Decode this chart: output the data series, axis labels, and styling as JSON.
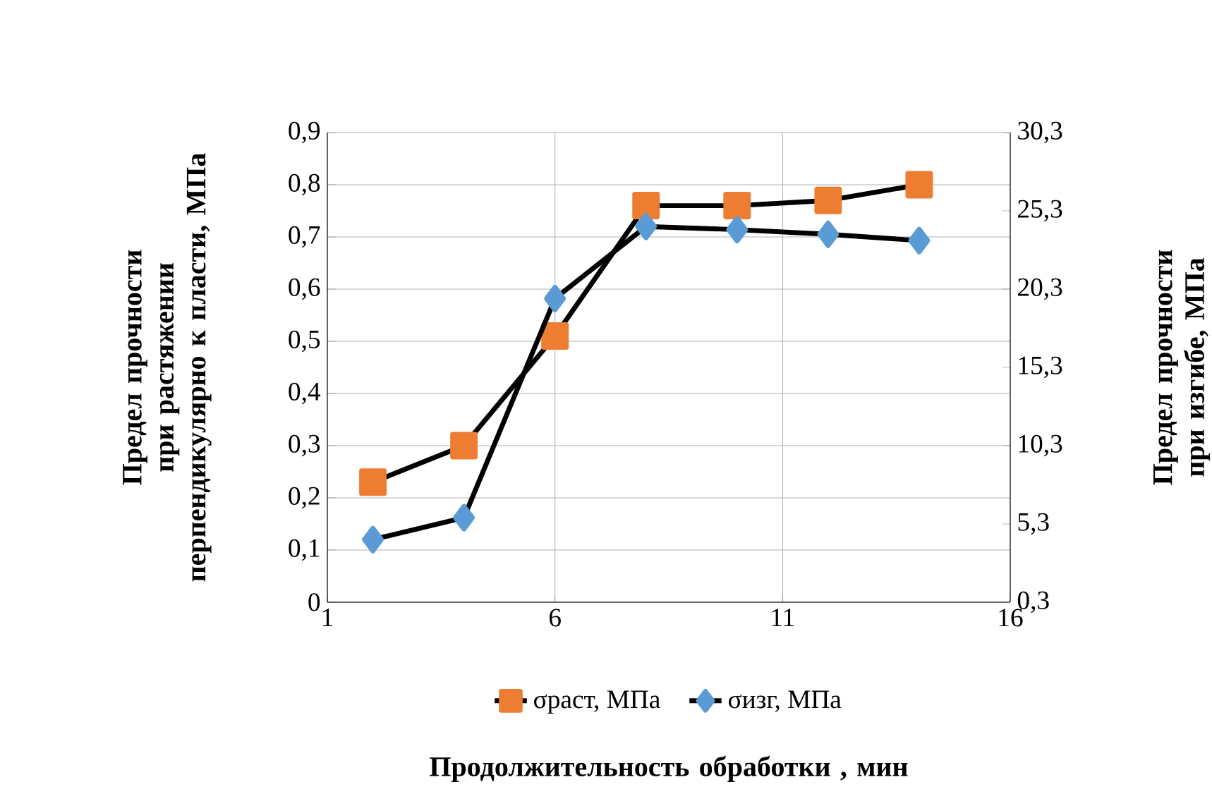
{
  "chart_data": {
    "type": "line",
    "xlabel": "Продолжительность обработки , мин",
    "ylabel": "Предел прочности при растяжении перпендикулярно к пласти, МПа",
    "y2label": "Предел прочности при изгибе, МПа",
    "x": [
      2,
      4,
      6,
      8,
      10,
      12,
      14
    ],
    "series": [
      {
        "name": "σраст, МПа",
        "color": "#ed7d31",
        "marker": "square",
        "values": [
          0.23,
          0.3,
          0.51,
          0.76,
          0.76,
          0.77,
          0.8
        ]
      },
      {
        "name": "σизг, МПа",
        "color": "#5b9bd5",
        "marker": "diamond",
        "axis": "y2",
        "values": [
          4.3,
          5.7,
          19.7,
          24.3,
          24.1,
          23.8,
          23.4
        ]
      }
    ],
    "xlim": [
      1,
      16
    ],
    "xticks": [
      1,
      6,
      11,
      16
    ],
    "ylim": [
      0,
      0.9
    ],
    "yticks": [
      0,
      {
        "value": 0.1,
        "label": "0,1"
      },
      {
        "value": 0.2,
        "label": "0,2"
      },
      {
        "value": 0.3,
        "label": "0,3"
      },
      {
        "value": 0.4,
        "label": "0,4"
      },
      {
        "value": 0.5,
        "label": "0,5"
      },
      {
        "value": 0.6,
        "label": "0,6"
      },
      {
        "value": 0.7,
        "label": "0,7"
      },
      {
        "value": 0.8,
        "label": "0,8"
      },
      {
        "value": 0.9,
        "label": "0,9"
      }
    ],
    "y2lim": [
      0.3,
      30.3
    ],
    "y2ticks": [
      {
        "value": 0.3,
        "label": "0,3"
      },
      {
        "value": 5.3,
        "label": "5,3"
      },
      {
        "value": 10.3,
        "label": "10,3"
      },
      {
        "value": 15.3,
        "label": "15,3"
      },
      {
        "value": 20.3,
        "label": "20,3"
      },
      {
        "value": 25.3,
        "label": "25,3"
      },
      {
        "value": 30.3,
        "label": "30,3"
      }
    ],
    "grid": true,
    "legend": "bottom",
    "line_style": "solid"
  }
}
